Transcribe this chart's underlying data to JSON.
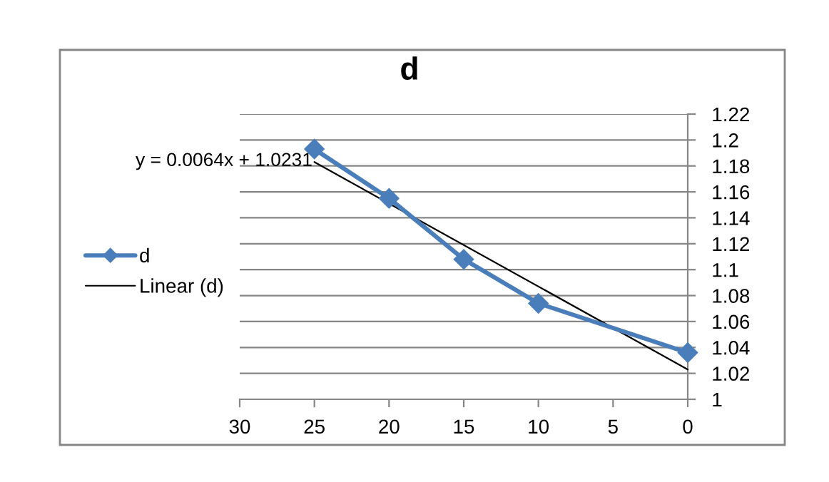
{
  "chart_data": {
    "type": "line",
    "title": "d",
    "annotations": [
      "y = 0.0064x + 1.0231"
    ],
    "series": [
      {
        "name": "d",
        "color": "#4a7ebb",
        "marker": "diamond",
        "line_style": "solid",
        "x": [
          25,
          20,
          15,
          10,
          0
        ],
        "values": [
          1.193,
          1.155,
          1.108,
          1.074,
          1.036
        ]
      },
      {
        "name": "Linear (d)",
        "color": "#000000",
        "marker": "none",
        "line_style": "solid",
        "x": [
          25,
          0
        ],
        "values": [
          1.183,
          1.023
        ]
      }
    ],
    "xlim": [
      30,
      0
    ],
    "xticks": [
      30,
      25,
      20,
      15,
      10,
      5,
      0
    ],
    "ylim": [
      1,
      1.22
    ],
    "yticks": [
      1,
      1.02,
      1.04,
      1.06,
      1.08,
      1.1,
      1.12,
      1.14,
      1.16,
      1.18,
      1.2,
      1.22
    ],
    "grid": "y",
    "legend": "left"
  }
}
